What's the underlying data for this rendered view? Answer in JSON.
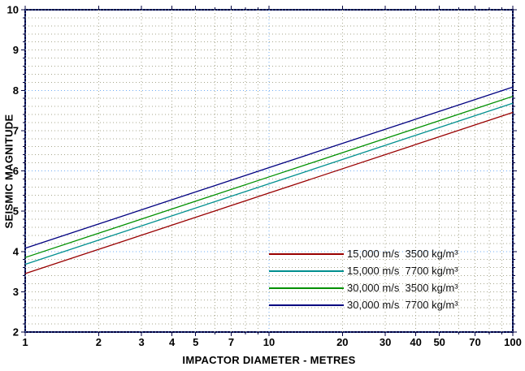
{
  "chart_data": {
    "type": "line",
    "title": "",
    "xlabel": "IMPACTOR DIAMETER - METRES",
    "ylabel": "SEISMIC MAGNITUDE",
    "x_scale": "log",
    "y_scale": "linear",
    "xlim": [
      1,
      100
    ],
    "ylim": [
      2,
      10
    ],
    "grid": true,
    "x_ticks_major": [
      1,
      2,
      3,
      4,
      5,
      7,
      10,
      20,
      30,
      40,
      50,
      70,
      100
    ],
    "x_tick_labels": [
      "1",
      "2",
      "3",
      "4",
      "5",
      "7",
      "10",
      "20",
      "30",
      "40",
      "50",
      "70",
      "100"
    ],
    "x_ticks_minor": [
      6,
      8,
      9,
      60,
      80,
      90
    ],
    "x_gridlines_minor": [
      2,
      3,
      4,
      5,
      6,
      7,
      8,
      9,
      20,
      30,
      40,
      50,
      60,
      70,
      80,
      90
    ],
    "x_gridlines_accent": [
      1,
      10,
      100
    ],
    "y_ticks_major": [
      2,
      3,
      4,
      5,
      6,
      7,
      8,
      9,
      10
    ],
    "y_tick_labels": [
      "2",
      "3",
      "4",
      "5",
      "6",
      "7",
      "8",
      "9",
      "10"
    ],
    "y_grid_step": 0.2,
    "y_gridlines_accent": [
      2,
      4,
      6,
      8,
      10
    ],
    "legend_position": "inside-lower-right",
    "series": [
      {
        "label": "15,000 m/s  3500 kg/m³",
        "color": "#990000",
        "points": [
          [
            1,
            3.45
          ],
          [
            10,
            5.45
          ],
          [
            100,
            7.45
          ]
        ]
      },
      {
        "label": "15,000 m/s  7700 kg/m³",
        "color": "#008F8F",
        "points": [
          [
            1,
            3.68
          ],
          [
            10,
            5.68
          ],
          [
            100,
            7.68
          ]
        ]
      },
      {
        "label": "30,000 m/s  3500 kg/m³",
        "color": "#009000",
        "points": [
          [
            1,
            3.85
          ],
          [
            10,
            5.85
          ],
          [
            100,
            7.85
          ]
        ]
      },
      {
        "label": "30,000 m/s  7700 kg/m³",
        "color": "#000080",
        "points": [
          [
            1,
            4.08
          ],
          [
            10,
            6.08
          ],
          [
            100,
            8.08
          ]
        ]
      }
    ],
    "colors": {
      "axis": "#000040",
      "grid_minor": "#A7A78D",
      "grid_accent": "#6FACF5",
      "tick_label": "#000000",
      "legend_text": "#111111",
      "background": "#FFFFFF"
    }
  }
}
